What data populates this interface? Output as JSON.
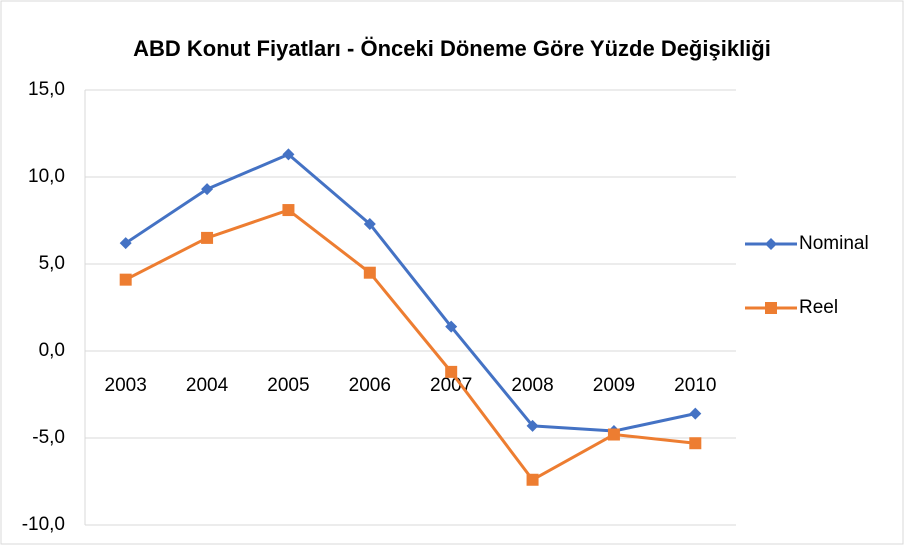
{
  "chart_data": {
    "type": "line",
    "title": "ABD Konut Fiyatları - Önceki Döneme Göre Yüzde Değişikliği",
    "categories": [
      "2003",
      "2004",
      "2005",
      "2006",
      "2007",
      "2008",
      "2009",
      "2010"
    ],
    "series": [
      {
        "name": "Nominal",
        "color": "#4472c4",
        "marker": "diamond",
        "values": [
          6.2,
          9.3,
          11.3,
          7.3,
          1.4,
          -4.3,
          -4.6,
          -3.6
        ]
      },
      {
        "name": "Reel",
        "color": "#ed7d31",
        "marker": "square",
        "values": [
          4.1,
          6.5,
          8.1,
          4.5,
          -1.2,
          -7.4,
          -4.8,
          -5.3
        ]
      }
    ],
    "ylim": [
      -10,
      15
    ],
    "yticks": [
      {
        "value": -10,
        "label": "-10,0"
      },
      {
        "value": -5,
        "label": "-5,0"
      },
      {
        "value": 0,
        "label": "0,0"
      },
      {
        "value": 5,
        "label": "5,0"
      },
      {
        "value": 10,
        "label": "10,0"
      },
      {
        "value": 15,
        "label": "15,0"
      }
    ],
    "grid": true,
    "legend": "right"
  }
}
